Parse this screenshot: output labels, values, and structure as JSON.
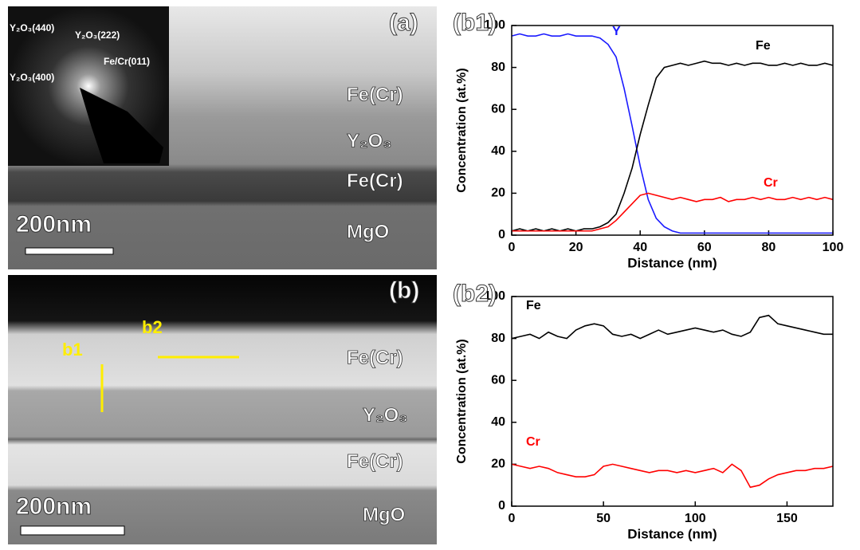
{
  "panels": {
    "a": {
      "label": "(a)",
      "scale": "200nm",
      "layers": [
        "Fe(Cr)",
        "Y₂O₃",
        "Fe(Cr)",
        "MgO"
      ],
      "diffraction": [
        "Y₂O₃(440)",
        "Y₂O₃(222)",
        "Fe/Cr(011)",
        "Y₂O₃(400)"
      ]
    },
    "b": {
      "label": "(b)",
      "scale": "200nm",
      "layers": [
        "Fe(Cr)",
        "Y₂O₃",
        "Fe(Cr)",
        "MgO"
      ],
      "lines": [
        "b1",
        "b2"
      ]
    }
  },
  "chart_data": [
    {
      "type": "line",
      "title": "(b1)",
      "x_label": "Distance (nm)",
      "y_label": "Concentration (at.%)",
      "x": [
        0,
        2.5,
        5,
        7.5,
        10,
        12.5,
        15,
        17.5,
        20,
        22.5,
        25,
        27.5,
        30,
        32.5,
        35,
        37.5,
        40,
        42.5,
        45,
        47.5,
        50,
        52.5,
        55,
        57.5,
        60,
        62.5,
        65,
        67.5,
        70,
        72.5,
        75,
        77.5,
        80,
        82.5,
        85,
        87.5,
        90,
        92.5,
        95,
        97.5,
        100
      ],
      "series": [
        {
          "name": "Y",
          "color": "#1a1aff",
          "values": [
            95,
            96,
            95,
            95,
            96,
            95,
            95,
            96,
            95,
            95,
            95,
            94,
            91,
            85,
            70,
            52,
            33,
            17,
            8,
            4,
            2,
            1,
            1,
            1,
            1,
            1,
            1,
            1,
            1,
            1,
            1,
            1,
            1,
            1,
            1,
            1,
            1,
            1,
            1,
            1,
            1
          ]
        },
        {
          "name": "Fe",
          "color": "#000000",
          "values": [
            2,
            3,
            2,
            3,
            2,
            3,
            2,
            3,
            2,
            3,
            3,
            4,
            6,
            10,
            20,
            32,
            48,
            62,
            75,
            80,
            81,
            82,
            81,
            82,
            83,
            82,
            82,
            81,
            82,
            81,
            82,
            82,
            81,
            81,
            82,
            81,
            82,
            81,
            81,
            82,
            81
          ]
        },
        {
          "name": "Cr",
          "color": "#ff0000",
          "values": [
            2,
            2,
            2,
            2,
            2,
            2,
            2,
            2,
            2,
            2,
            2,
            3,
            4,
            7,
            11,
            15,
            19,
            20,
            19,
            18,
            17,
            18,
            17,
            16,
            17,
            17,
            18,
            16,
            17,
            17,
            18,
            17,
            18,
            17,
            17,
            18,
            17,
            18,
            17,
            18,
            17
          ]
        }
      ],
      "xlim": [
        0,
        100
      ],
      "xticks": [
        0,
        20,
        40,
        60,
        80,
        100
      ],
      "ylim": [
        0,
        100
      ],
      "yticks": [
        0,
        20,
        40,
        60,
        80,
        100
      ]
    },
    {
      "type": "line",
      "title": "(b2)",
      "x_label": "Distance (nm)",
      "y_label": "Concentration (at.%)",
      "x": [
        0,
        5,
        10,
        15,
        20,
        25,
        30,
        35,
        40,
        45,
        50,
        55,
        60,
        65,
        70,
        75,
        80,
        85,
        90,
        95,
        100,
        105,
        110,
        115,
        120,
        125,
        130,
        135,
        140,
        145,
        150,
        155,
        160,
        165,
        170,
        175
      ],
      "series": [
        {
          "name": "Fe",
          "color": "#000000",
          "values": [
            80,
            81,
            82,
            80,
            83,
            81,
            80,
            84,
            86,
            87,
            86,
            82,
            81,
            82,
            80,
            82,
            84,
            82,
            83,
            84,
            85,
            84,
            83,
            84,
            82,
            81,
            83,
            90,
            91,
            87,
            86,
            85,
            84,
            83,
            82,
            82
          ]
        },
        {
          "name": "Cr",
          "color": "#ff0000",
          "values": [
            20,
            19,
            18,
            19,
            18,
            16,
            15,
            14,
            14,
            15,
            19,
            20,
            19,
            18,
            17,
            16,
            17,
            17,
            16,
            17,
            16,
            17,
            18,
            16,
            20,
            17,
            9,
            10,
            13,
            15,
            16,
            17,
            17,
            18,
            18,
            19
          ]
        }
      ],
      "xlim": [
        0,
        175
      ],
      "xticks": [
        0,
        50,
        100,
        150
      ],
      "ylim": [
        0,
        100
      ],
      "yticks": [
        0,
        20,
        40,
        60,
        80,
        100
      ]
    }
  ]
}
